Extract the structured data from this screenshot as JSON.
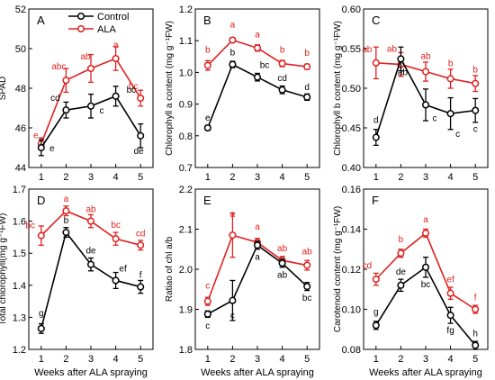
{
  "figure": {
    "legend": {
      "entries": [
        {
          "name": "Control",
          "color": "#000000"
        },
        {
          "name": "ALA",
          "color": "#e0201f"
        }
      ]
    },
    "xlabel": "Weeks after ALA spraying"
  },
  "chart_data": [
    {
      "type": "line",
      "panel": "A",
      "ylabel": "SPAD",
      "xlabel": "",
      "categories": [
        1,
        2,
        3,
        4,
        5
      ],
      "ylim": [
        44,
        52
      ],
      "yticks": [
        44,
        46,
        48,
        50,
        52
      ],
      "ydec": 0,
      "grid": false,
      "series": [
        {
          "name": "Control",
          "values": [
            45.0,
            46.9,
            47.1,
            47.6,
            45.6
          ],
          "err": [
            0.4,
            0.4,
            0.6,
            0.5,
            0.6
          ],
          "labels": [
            "e",
            "cd",
            "c",
            "bc",
            "de"
          ]
        },
        {
          "name": "ALA",
          "values": [
            45.2,
            48.4,
            49.0,
            49.5,
            47.5
          ],
          "err": [
            0.3,
            0.6,
            0.7,
            0.6,
            0.4
          ],
          "labels": [
            "e",
            "abc",
            "ab",
            "a",
            "bc"
          ]
        }
      ]
    },
    {
      "type": "line",
      "panel": "B",
      "ylabel": "Chlorophyll a content (mg g⁻¹FW)",
      "xlabel": "",
      "categories": [
        1,
        2,
        3,
        4,
        5
      ],
      "ylim": [
        0.7,
        1.2
      ],
      "yticks": [
        0.7,
        0.8,
        0.9,
        1.0,
        1.1,
        1.2
      ],
      "ydec": 1,
      "grid": false,
      "series": [
        {
          "name": "Control",
          "values": [
            0.825,
            1.025,
            0.985,
            0.945,
            0.922
          ],
          "err": [
            0.008,
            0.01,
            0.012,
            0.012,
            0.01
          ],
          "labels": [
            "e",
            "b",
            "bc",
            "cd",
            "d"
          ]
        },
        {
          "name": "ALA",
          "values": [
            1.022,
            1.102,
            1.077,
            1.028,
            1.018
          ],
          "err": [
            0.015,
            0.008,
            0.01,
            0.01,
            0.008
          ],
          "labels": [
            "b",
            "a",
            "a",
            "b",
            "b"
          ]
        }
      ]
    },
    {
      "type": "line",
      "panel": "C",
      "ylabel": "Chlorophyll b content (mg g⁻¹FW)",
      "xlabel": "",
      "categories": [
        1,
        2,
        3,
        4,
        5
      ],
      "ylim": [
        0.4,
        0.6
      ],
      "yticks": [
        0.4,
        0.45,
        0.5,
        0.55,
        0.6
      ],
      "ydec": 2,
      "grid": false,
      "series": [
        {
          "name": "Control",
          "values": [
            0.438,
            0.537,
            0.479,
            0.468,
            0.472
          ],
          "err": [
            0.01,
            0.015,
            0.02,
            0.02,
            0.015
          ],
          "labels": [
            "d",
            "ab",
            "c",
            "c",
            "c"
          ]
        },
        {
          "name": "ALA",
          "values": [
            0.532,
            0.53,
            0.521,
            0.512,
            0.506
          ],
          "err": [
            0.02,
            0.015,
            0.012,
            0.012,
            0.01
          ],
          "labels": [
            "ab",
            "ab",
            "ab",
            "b",
            "b"
          ]
        }
      ]
    },
    {
      "type": "line",
      "panel": "D",
      "ylabel": "Total chlorophyll(mg g⁻¹FW)",
      "xlabel": "Weeks after ALA spraying",
      "categories": [
        1,
        2,
        3,
        4,
        5
      ],
      "ylim": [
        1.2,
        1.7
      ],
      "yticks": [
        1.2,
        1.3,
        1.4,
        1.5,
        1.6,
        1.7
      ],
      "ydec": 1,
      "grid": false,
      "series": [
        {
          "name": "Control",
          "values": [
            1.265,
            1.565,
            1.465,
            1.415,
            1.395
          ],
          "err": [
            0.015,
            0.015,
            0.02,
            0.025,
            0.02
          ],
          "labels": [
            "g",
            "b",
            "de",
            "ef",
            "f"
          ]
        },
        {
          "name": "ALA",
          "values": [
            1.555,
            1.632,
            1.6,
            1.545,
            1.525
          ],
          "err": [
            0.03,
            0.015,
            0.02,
            0.02,
            0.015
          ],
          "labels": [
            "bc",
            "a",
            "ab",
            "bc",
            "cd"
          ]
        }
      ]
    },
    {
      "type": "line",
      "panel": "E",
      "ylabel": "Ratiao of chl a/b",
      "xlabel": "Weeks after ALA spraying",
      "categories": [
        1,
        2,
        3,
        4,
        5
      ],
      "ylim": [
        1.8,
        2.2
      ],
      "yticks": [
        1.8,
        1.9,
        2.0,
        2.1,
        2.2
      ],
      "ydec": 1,
      "grid": false,
      "series": [
        {
          "name": "Control",
          "values": [
            1.888,
            1.922,
            2.06,
            2.015,
            1.957
          ],
          "err": [
            0.008,
            0.05,
            0.01,
            0.01,
            0.01
          ],
          "labels": [
            "c",
            "c",
            "a",
            "ab",
            "bc"
          ]
        },
        {
          "name": "ALA",
          "values": [
            1.92,
            2.085,
            2.067,
            2.022,
            2.01
          ],
          "err": [
            0.01,
            0.055,
            0.01,
            0.01,
            0.012
          ],
          "labels": [
            "c",
            "a",
            "a",
            "ab",
            "ab"
          ]
        }
      ]
    },
    {
      "type": "line",
      "panel": "F",
      "ylabel": "Carotenoid content (mg g⁻¹FW)",
      "xlabel": "Weeks after ALA spraying",
      "categories": [
        1,
        2,
        3,
        4,
        5
      ],
      "ylim": [
        0.08,
        0.16
      ],
      "yticks": [
        0.08,
        0.1,
        0.12,
        0.14,
        0.16
      ],
      "ydec": 2,
      "grid": false,
      "series": [
        {
          "name": "Control",
          "values": [
            0.092,
            0.112,
            0.121,
            0.097,
            0.082
          ],
          "err": [
            0.002,
            0.003,
            0.005,
            0.004,
            0.002
          ],
          "labels": [
            "g",
            "de",
            "bc",
            "fg",
            "h"
          ]
        },
        {
          "name": "ALA",
          "values": [
            0.115,
            0.128,
            0.138,
            0.108,
            0.1
          ],
          "err": [
            0.003,
            0.002,
            0.002,
            0.003,
            0.002
          ],
          "labels": [
            "cd",
            "b",
            "a",
            "ef",
            "f"
          ]
        }
      ]
    }
  ]
}
